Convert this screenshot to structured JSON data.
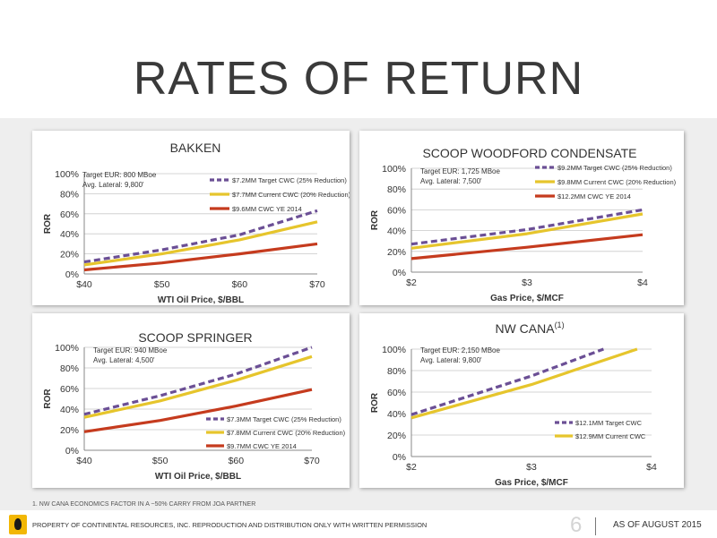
{
  "slide": {
    "title": "RATES OF RETURN",
    "footnote": "1. NW CANA ECONOMICS FACTOR IN A ~50% CARRY FROM JOA PARTNER",
    "footer_text": "PROPERTY OF CONTINENTAL RESOURCES, INC. REPRODUCTION AND DISTRIBUTION ONLY WITH WRITTEN PERMISSION",
    "page_number": "6",
    "as_of": "AS OF AUGUST 2015"
  },
  "colors": {
    "purple": "#6b4f95",
    "yellow": "#e6c52c",
    "red": "#c53b1e",
    "grid": "#c9c9c9",
    "text": "#333333"
  },
  "chart_data": [
    {
      "type": "line",
      "title": "BAKKEN",
      "title_superscript": "",
      "xlabel": "WTI Oil Price, $/BBL",
      "ylabel": "ROR",
      "x": [
        40,
        50,
        60,
        70
      ],
      "xtick_labels": [
        "$40",
        "$50",
        "$60",
        "$70"
      ],
      "xlim": [
        40,
        70
      ],
      "yticks": [
        0,
        20,
        40,
        60,
        80,
        100
      ],
      "ytick_labels": [
        "0%",
        "20%",
        "40%",
        "60%",
        "80%",
        "100%"
      ],
      "ylim": [
        0,
        100
      ],
      "grid": "horizontal",
      "notes": [
        "Target EUR: 800 MBoe",
        "Avg. Lateral: 9,800'"
      ],
      "legend_position": "top-right",
      "series": [
        {
          "name": "$7.2MM Target CWC (25% Reduction)",
          "color": "purple",
          "style": "dashed",
          "values": [
            12,
            24,
            39,
            63
          ]
        },
        {
          "name": "$7.7MM Current CWC (20% Reduction)",
          "color": "yellow",
          "style": "solid",
          "values": [
            9,
            20,
            34,
            52
          ]
        },
        {
          "name": "$9.6MM CWC YE 2014",
          "color": "red",
          "style": "solid",
          "values": [
            4,
            11,
            20,
            30
          ]
        }
      ]
    },
    {
      "type": "line",
      "title": "SCOOP WOODFORD CONDENSATE",
      "title_superscript": "",
      "xlabel": "Gas Price, $/MCF",
      "ylabel": "ROR",
      "x": [
        2,
        3,
        4
      ],
      "xtick_labels": [
        "$2",
        "$3",
        "$4"
      ],
      "xlim": [
        2,
        4
      ],
      "yticks": [
        0,
        20,
        40,
        60,
        80,
        100
      ],
      "ytick_labels": [
        "0%",
        "20%",
        "40%",
        "60%",
        "80%",
        "100%"
      ],
      "ylim": [
        0,
        100
      ],
      "grid": "horizontal",
      "notes": [
        "Target EUR: 1,725 MBoe",
        "Avg. Lateral: 7,500'"
      ],
      "legend_position": "top-right",
      "series": [
        {
          "name": "$9.2MM Target CWC (25% Reduction)",
          "color": "purple",
          "style": "dashed",
          "values": [
            27,
            41,
            60
          ]
        },
        {
          "name": "$9.8MM Current CWC (20% Reduction)",
          "color": "yellow",
          "style": "solid",
          "values": [
            23,
            37,
            56
          ]
        },
        {
          "name": "$12.2MM CWC YE 2014",
          "color": "red",
          "style": "solid",
          "values": [
            13,
            24,
            36
          ]
        }
      ]
    },
    {
      "type": "line",
      "title": "SCOOP SPRINGER",
      "title_superscript": "",
      "xlabel": "WTI Oil Price, $/BBL",
      "ylabel": "ROR",
      "x": [
        40,
        50,
        60,
        70
      ],
      "xtick_labels": [
        "$40",
        "$50",
        "$60",
        "$70"
      ],
      "xlim": [
        40,
        70
      ],
      "yticks": [
        0,
        20,
        40,
        60,
        80,
        100
      ],
      "ytick_labels": [
        "0%",
        "20%",
        "40%",
        "60%",
        "80%",
        "100%"
      ],
      "ylim": [
        0,
        100
      ],
      "grid": "horizontal",
      "notes": [
        "Target EUR: 940 MBoe",
        "Avg. Lateral: 4,500'"
      ],
      "legend_position": "bottom-right",
      "series": [
        {
          "name": "$7.3MM Target CWC (25% Reduction)",
          "color": "purple",
          "style": "dashed",
          "values": [
            35,
            53,
            74,
            100
          ]
        },
        {
          "name": "$7.8MM Current CWC (20% Reduction)",
          "color": "yellow",
          "style": "solid",
          "values": [
            32,
            48,
            68,
            91
          ]
        },
        {
          "name": "$9.7MM CWC YE 2014",
          "color": "red",
          "style": "solid",
          "values": [
            18,
            29,
            43,
            59
          ]
        }
      ]
    },
    {
      "type": "line",
      "title": "NW CANA",
      "title_superscript": "(1)",
      "xlabel": "Gas Price, $/MCF",
      "ylabel": "ROR",
      "x": [
        2,
        3,
        4
      ],
      "xtick_labels": [
        "$2",
        "$3",
        "$4"
      ],
      "xlim": [
        2,
        4
      ],
      "yticks": [
        0,
        20,
        40,
        60,
        80,
        100
      ],
      "ytick_labels": [
        "0%",
        "20%",
        "40%",
        "60%",
        "80%",
        "100%"
      ],
      "ylim": [
        0,
        100
      ],
      "grid": "horizontal",
      "notes": [
        "Target EUR: 2,150 MBoe",
        "Avg. Lateral: 9,800'"
      ],
      "legend_position": "bottom-right",
      "series": [
        {
          "name": "$12.1MM Target CWC",
          "color": "purple",
          "style": "dashed",
          "values": [
            39,
            75,
            100
          ],
          "x": [
            2,
            3,
            3.6
          ]
        },
        {
          "name": "$12.9MM Current CWC",
          "color": "yellow",
          "style": "solid",
          "values": [
            36,
            67,
            100
          ],
          "x": [
            2,
            3,
            3.88
          ]
        }
      ]
    }
  ]
}
